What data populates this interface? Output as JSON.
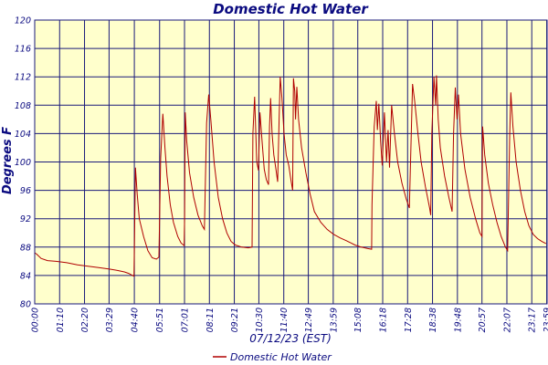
{
  "colors": {
    "plot_background": "#ffffcc",
    "grid": "#1a1a7a",
    "series": "#b00000",
    "text": "#0b0b80"
  },
  "chart_data": {
    "type": "line",
    "title": "Domestic Hot Water",
    "xlabel": "07/12/23 (EST)",
    "ylabel": "Degrees F",
    "ylim": [
      80,
      120
    ],
    "y_ticks": [
      "80",
      "84",
      "88",
      "92",
      "96",
      "100",
      "104",
      "108",
      "112",
      "116",
      "120"
    ],
    "xlim_hours": [
      0,
      24
    ],
    "x_ticks": [
      "00:00",
      "01:10",
      "02:20",
      "03:29",
      "04:40",
      "05:51",
      "07:01",
      "08:11",
      "09:21",
      "10:30",
      "11:40",
      "12:49",
      "13:59",
      "15:08",
      "16:18",
      "17:28",
      "18:38",
      "19:48",
      "20:57",
      "22:07",
      "23:17",
      "23:59"
    ],
    "x_tick_hours": [
      0,
      1.167,
      2.333,
      3.483,
      4.667,
      5.85,
      7.017,
      8.183,
      9.35,
      10.5,
      11.667,
      12.817,
      13.983,
      15.133,
      16.3,
      17.467,
      18.633,
      19.8,
      20.95,
      22.117,
      23.283,
      23.983
    ],
    "grid": true,
    "legend": "bottom-center",
    "series": [
      {
        "name": "Domestic Hot Water",
        "points": [
          [
            0,
            87.2
          ],
          [
            0.1,
            87.0
          ],
          [
            0.3,
            86.4
          ],
          [
            0.6,
            86.1
          ],
          [
            1.0,
            86.0
          ],
          [
            1.5,
            85.8
          ],
          [
            2.0,
            85.5
          ],
          [
            2.5,
            85.3
          ],
          [
            3.0,
            85.1
          ],
          [
            3.5,
            84.9
          ],
          [
            3.9,
            84.7
          ],
          [
            4.2,
            84.5
          ],
          [
            4.4,
            84.3
          ],
          [
            4.58,
            84.0
          ],
          [
            4.65,
            83.9
          ],
          [
            4.72,
            99.2
          ],
          [
            4.8,
            95.5
          ],
          [
            4.9,
            92.0
          ],
          [
            5.1,
            89.5
          ],
          [
            5.3,
            87.5
          ],
          [
            5.5,
            86.5
          ],
          [
            5.7,
            86.3
          ],
          [
            5.82,
            86.6
          ],
          [
            5.9,
            100.5
          ],
          [
            6.0,
            106.8
          ],
          [
            6.1,
            102.0
          ],
          [
            6.2,
            98.0
          ],
          [
            6.35,
            94.0
          ],
          [
            6.5,
            91.5
          ],
          [
            6.7,
            89.5
          ],
          [
            6.85,
            88.6
          ],
          [
            7.0,
            88.2
          ],
          [
            7.02,
            92.0
          ],
          [
            7.05,
            107.0
          ],
          [
            7.12,
            103.0
          ],
          [
            7.25,
            98.5
          ],
          [
            7.45,
            95.0
          ],
          [
            7.65,
            92.5
          ],
          [
            7.85,
            91.0
          ],
          [
            7.95,
            90.5
          ],
          [
            8.05,
            105.5
          ],
          [
            8.15,
            109.5
          ],
          [
            8.25,
            106.0
          ],
          [
            8.4,
            100.0
          ],
          [
            8.6,
            95.0
          ],
          [
            8.8,
            92.0
          ],
          [
            9.0,
            90.0
          ],
          [
            9.2,
            88.8
          ],
          [
            9.4,
            88.3
          ],
          [
            9.7,
            88.0
          ],
          [
            10.0,
            87.9
          ],
          [
            10.18,
            88.0
          ],
          [
            10.22,
            104.0
          ],
          [
            10.3,
            109.2
          ],
          [
            10.4,
            100.0
          ],
          [
            10.48,
            98.8
          ],
          [
            10.55,
            107.0
          ],
          [
            10.65,
            103.0
          ],
          [
            10.75,
            99.0
          ],
          [
            10.85,
            97.5
          ],
          [
            10.95,
            96.8
          ],
          [
            11.0,
            105.0
          ],
          [
            11.05,
            109.0
          ],
          [
            11.12,
            104.0
          ],
          [
            11.2,
            101.0
          ],
          [
            11.3,
            99.0
          ],
          [
            11.38,
            97.2
          ],
          [
            11.45,
            106.0
          ],
          [
            11.5,
            112.0
          ],
          [
            11.58,
            109.0
          ],
          [
            11.68,
            104.0
          ],
          [
            11.78,
            101.0
          ],
          [
            11.9,
            99.5
          ],
          [
            12.0,
            97.5
          ],
          [
            12.08,
            96.0
          ],
          [
            12.12,
            111.8
          ],
          [
            12.18,
            110.0
          ],
          [
            12.22,
            106.0
          ],
          [
            12.28,
            110.6
          ],
          [
            12.36,
            106.0
          ],
          [
            12.5,
            102.0
          ],
          [
            12.7,
            98.5
          ],
          [
            12.9,
            95.5
          ],
          [
            13.1,
            93.0
          ],
          [
            13.4,
            91.5
          ],
          [
            13.7,
            90.5
          ],
          [
            14.0,
            89.8
          ],
          [
            14.3,
            89.3
          ],
          [
            14.6,
            88.9
          ],
          [
            14.8,
            88.6
          ],
          [
            15.0,
            88.3
          ],
          [
            15.3,
            88.0
          ],
          [
            15.6,
            87.8
          ],
          [
            15.78,
            87.7
          ],
          [
            15.8,
            94.0
          ],
          [
            15.9,
            105.0
          ],
          [
            16.0,
            108.6
          ],
          [
            16.05,
            104.5
          ],
          [
            16.12,
            108.2
          ],
          [
            16.2,
            103.0
          ],
          [
            16.28,
            99.5
          ],
          [
            16.38,
            107.0
          ],
          [
            16.48,
            100.0
          ],
          [
            16.55,
            104.5
          ],
          [
            16.62,
            99.2
          ],
          [
            16.72,
            108.0
          ],
          [
            16.85,
            104.0
          ],
          [
            17.0,
            100.0
          ],
          [
            17.2,
            97.0
          ],
          [
            17.4,
            94.8
          ],
          [
            17.55,
            93.5
          ],
          [
            17.62,
            102.0
          ],
          [
            17.7,
            111.0
          ],
          [
            17.8,
            108.5
          ],
          [
            17.95,
            104.0
          ],
          [
            18.1,
            100.0
          ],
          [
            18.3,
            96.5
          ],
          [
            18.5,
            93.5
          ],
          [
            18.55,
            92.5
          ],
          [
            18.6,
            104.0
          ],
          [
            18.7,
            112.0
          ],
          [
            18.78,
            108.0
          ],
          [
            18.82,
            112.2
          ],
          [
            18.9,
            106.0
          ],
          [
            19.0,
            102.0
          ],
          [
            19.2,
            98.0
          ],
          [
            19.4,
            95.0
          ],
          [
            19.55,
            93.0
          ],
          [
            19.62,
            104.0
          ],
          [
            19.7,
            110.5
          ],
          [
            19.78,
            106.0
          ],
          [
            19.85,
            109.5
          ],
          [
            19.95,
            104.0
          ],
          [
            20.15,
            99.0
          ],
          [
            20.4,
            95.0
          ],
          [
            20.65,
            92.0
          ],
          [
            20.85,
            90.0
          ],
          [
            20.95,
            89.5
          ],
          [
            20.98,
            105.0
          ],
          [
            21.08,
            101.0
          ],
          [
            21.25,
            97.0
          ],
          [
            21.45,
            94.0
          ],
          [
            21.65,
            91.5
          ],
          [
            21.85,
            89.5
          ],
          [
            22.05,
            88.0
          ],
          [
            22.15,
            87.5
          ],
          [
            22.25,
            104.0
          ],
          [
            22.3,
            109.8
          ],
          [
            22.4,
            105.0
          ],
          [
            22.55,
            100.0
          ],
          [
            22.75,
            96.0
          ],
          [
            22.95,
            93.0
          ],
          [
            23.15,
            91.0
          ],
          [
            23.35,
            89.8
          ],
          [
            23.55,
            89.2
          ],
          [
            23.75,
            88.8
          ],
          [
            23.95,
            88.5
          ]
        ]
      }
    ]
  }
}
